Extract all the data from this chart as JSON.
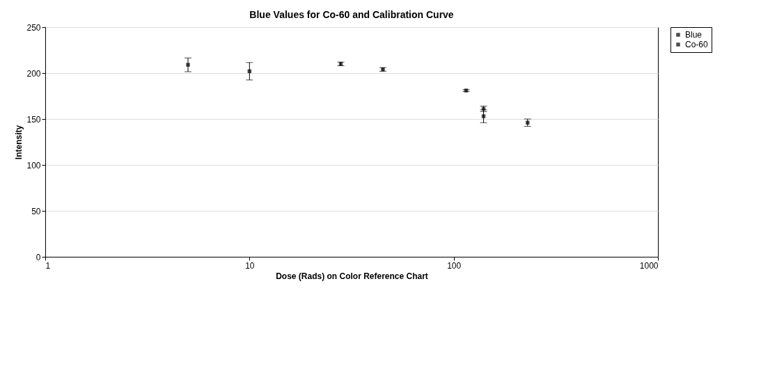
{
  "chart_data": {
    "type": "scatter",
    "title": "Blue Values for Co-60 and Calibration Curve",
    "xlabel": "Dose (Rads) on Color Reference Chart",
    "ylabel": "Intensity",
    "log": "x",
    "xlim": [
      1,
      1000
    ],
    "xticks": [
      1,
      10,
      100,
      1000
    ],
    "ylim": [
      0,
      250
    ],
    "yticks": [
      0,
      50,
      100,
      150,
      200,
      250
    ],
    "grid": "y",
    "legend": "right",
    "marker": "square",
    "series": [
      {
        "name": "Blue",
        "color": "#000000",
        "x": [
          5,
          10,
          28,
          45,
          115,
          140,
          230
        ],
        "values": [
          209,
          202,
          210,
          204,
          181,
          161,
          146
        ],
        "errors": [
          7.5,
          9.5,
          2,
          2,
          1,
          3,
          4
        ]
      },
      {
        "name": "Co-60",
        "color": "#000000",
        "x": [
          140
        ],
        "values": [
          153
        ],
        "errors": [
          7
        ]
      }
    ]
  }
}
